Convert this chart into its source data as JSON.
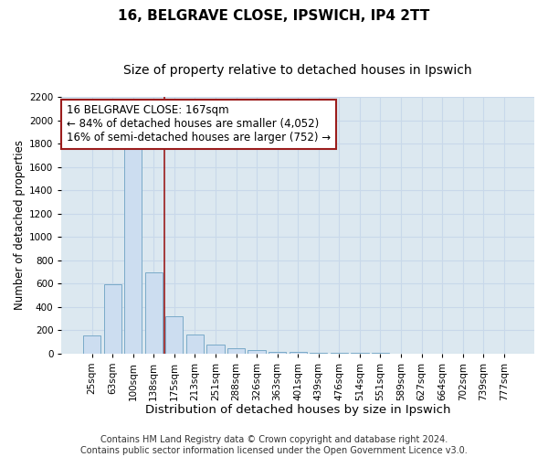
{
  "title1": "16, BELGRAVE CLOSE, IPSWICH, IP4 2TT",
  "title2": "Size of property relative to detached houses in Ipswich",
  "xlabel": "Distribution of detached houses by size in Ipswich",
  "ylabel": "Number of detached properties",
  "categories": [
    "25sqm",
    "63sqm",
    "100sqm",
    "138sqm",
    "175sqm",
    "213sqm",
    "251sqm",
    "288sqm",
    "326sqm",
    "363sqm",
    "401sqm",
    "439sqm",
    "476sqm",
    "514sqm",
    "551sqm",
    "589sqm",
    "627sqm",
    "664sqm",
    "702sqm",
    "739sqm",
    "777sqm"
  ],
  "values": [
    155,
    590,
    1750,
    695,
    320,
    160,
    75,
    45,
    25,
    15,
    10,
    5,
    3,
    2,
    2,
    1,
    1,
    0,
    0,
    0,
    0
  ],
  "bar_color": "#ccddf0",
  "bar_edge_color": "#7aaac8",
  "vline_x": 3.5,
  "vline_color": "#9b1c1c",
  "annotation_text": "16 BELGRAVE CLOSE: 167sqm\n← 84% of detached houses are smaller (4,052)\n16% of semi-detached houses are larger (752) →",
  "annotation_box_edgecolor": "#9b1c1c",
  "ylim": [
    0,
    2200
  ],
  "yticks": [
    0,
    200,
    400,
    600,
    800,
    1000,
    1200,
    1400,
    1600,
    1800,
    2000,
    2200
  ],
  "grid_color": "#c8d8ea",
  "bg_color": "#dce8f0",
  "footnote1": "Contains HM Land Registry data © Crown copyright and database right 2024.",
  "footnote2": "Contains public sector information licensed under the Open Government Licence v3.0.",
  "title1_fontsize": 11,
  "title2_fontsize": 10,
  "xlabel_fontsize": 9.5,
  "ylabel_fontsize": 8.5,
  "tick_fontsize": 7.5,
  "annot_fontsize": 8.5,
  "footnote_fontsize": 7
}
